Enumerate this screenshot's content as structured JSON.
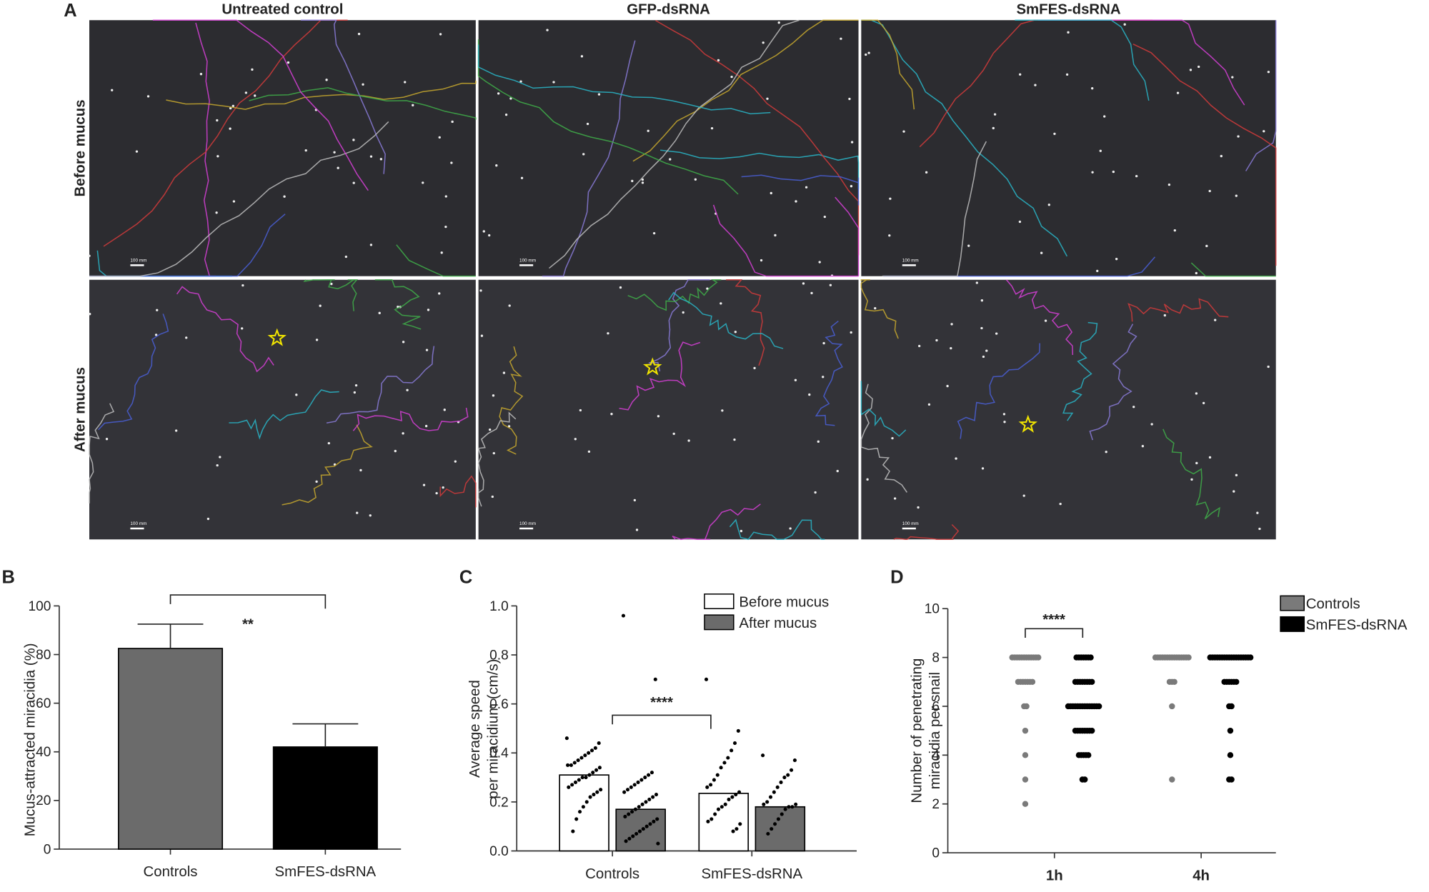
{
  "panel_a": {
    "label": "A",
    "columns": [
      "Untreated control",
      "GFP-dsRNA",
      "SmFES-dsRNA"
    ],
    "rows": [
      "Before mucus",
      "After mucus"
    ],
    "scale_bar": "100 mm"
  },
  "chart_data": [
    {
      "type": "bar",
      "label": "B",
      "ylabel": [
        "Mucus-attracted miracidia (%)"
      ],
      "categories": [
        "Controls",
        "SmFES-dsRNA"
      ],
      "values": [
        82.5,
        42
      ],
      "errors": [
        10,
        9.5
      ],
      "colors": [
        "#6b6b6b",
        "#000000"
      ],
      "ylim": [
        0,
        100
      ],
      "yticks": [
        0,
        20,
        40,
        60,
        80,
        100
      ],
      "significance": "**"
    },
    {
      "type": "bar",
      "label": "C",
      "ylabel": [
        "Average speed",
        "per miracidium (cm/s)"
      ],
      "categories": [
        "Controls",
        "SmFES-dsRNA"
      ],
      "series": [
        {
          "name": "Before mucus",
          "color": "#ffffff",
          "values": [
            0.31,
            0.235
          ],
          "points": [
            [
              0.46,
              0.44,
              0.42,
              0.41,
              0.4,
              0.39,
              0.38,
              0.37,
              0.36,
              0.35,
              0.35,
              0.34,
              0.33,
              0.32,
              0.31,
              0.3,
              0.3,
              0.29,
              0.28,
              0.27,
              0.26,
              0.25,
              0.24,
              0.23,
              0.22,
              0.2,
              0.18,
              0.16,
              0.13,
              0.08
            ],
            [
              0.7,
              0.49,
              0.44,
              0.41,
              0.38,
              0.36,
              0.34,
              0.31,
              0.29,
              0.27,
              0.26,
              0.24,
              0.23,
              0.22,
              0.21,
              0.19,
              0.18,
              0.17,
              0.15,
              0.13,
              0.12,
              0.11,
              0.09,
              0.08
            ]
          ]
        },
        {
          "name": "After mucus",
          "color": "#6b6b6b",
          "values": [
            0.17,
            0.18
          ],
          "points": [
            [
              0.96,
              0.7,
              0.32,
              0.31,
              0.3,
              0.29,
              0.28,
              0.27,
              0.26,
              0.25,
              0.24,
              0.23,
              0.22,
              0.21,
              0.2,
              0.19,
              0.18,
              0.17,
              0.16,
              0.15,
              0.14,
              0.13,
              0.12,
              0.11,
              0.1,
              0.09,
              0.08,
              0.07,
              0.06,
              0.05,
              0.04,
              0.03
            ],
            [
              0.39,
              0.37,
              0.33,
              0.31,
              0.3,
              0.28,
              0.26,
              0.24,
              0.22,
              0.2,
              0.19,
              0.19,
              0.18,
              0.18,
              0.17,
              0.15,
              0.13,
              0.11,
              0.09,
              0.07
            ]
          ]
        }
      ],
      "ylim": [
        0,
        1
      ],
      "yticks": [
        {
          "value": 0,
          "label": "0.0"
        },
        {
          "value": 0.2,
          "label": "0.2"
        },
        {
          "value": 0.4,
          "label": "0.4"
        },
        {
          "value": 0.6,
          "label": "0.6"
        },
        {
          "value": 0.8,
          "label": "0.8"
        },
        {
          "value": 1,
          "label": "1.0"
        }
      ],
      "significance": "****"
    },
    {
      "type": "strip",
      "label": "D",
      "ylabel": [
        "Number of penetrating",
        "miracidia per snail"
      ],
      "categories": [
        "1h",
        "4h"
      ],
      "series": [
        {
          "name": "Controls",
          "color": "#7a7a7a",
          "points": [
            [
              8,
              8,
              8,
              8,
              8,
              8,
              8,
              8,
              8,
              8,
              8,
              8,
              7,
              7,
              7,
              7,
              7,
              7,
              7,
              6,
              6,
              5,
              4,
              3,
              2
            ],
            [
              8,
              8,
              8,
              8,
              8,
              8,
              8,
              8,
              8,
              8,
              8,
              8,
              8,
              8,
              8,
              7,
              7,
              7,
              6,
              3
            ]
          ]
        },
        {
          "name": "SmFES-dsRNA",
          "color": "#000000",
          "points": [
            [
              8,
              8,
              8,
              8,
              8,
              8,
              8,
              7,
              7,
              7,
              7,
              7,
              7,
              7,
              7,
              6,
              6,
              6,
              6,
              6,
              6,
              6,
              6,
              6,
              6,
              6,
              6,
              6,
              6,
              5,
              5,
              5,
              5,
              5,
              5,
              5,
              5,
              4,
              4,
              4,
              4,
              4,
              3,
              3
            ],
            [
              8,
              8,
              8,
              8,
              8,
              8,
              8,
              8,
              8,
              8,
              8,
              8,
              8,
              8,
              8,
              8,
              8,
              8,
              7,
              7,
              7,
              7,
              7,
              7,
              6,
              6,
              5,
              4,
              3,
              3
            ]
          ]
        }
      ],
      "ylim": [
        0,
        10
      ],
      "yticks": [
        0,
        2,
        4,
        6,
        8,
        10
      ],
      "significance": "****"
    }
  ]
}
